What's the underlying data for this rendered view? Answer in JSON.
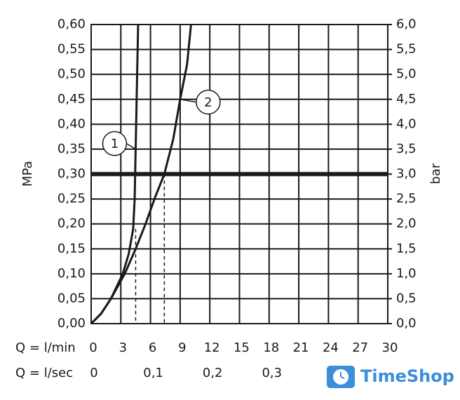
{
  "chart_data": {
    "type": "line",
    "x_label": "Q = l/min",
    "x2_label": "Q = l/sec",
    "y_label": "MPa",
    "y2_label": "bar",
    "xlim": [
      0,
      30
    ],
    "xticks": [
      0,
      3,
      6,
      9,
      12,
      15,
      18,
      21,
      24,
      27,
      30
    ],
    "x2lim": [
      0,
      0.5
    ],
    "x2ticks": [
      0,
      {
        "value": 0.1,
        "label": "0,1"
      },
      {
        "value": 0.2,
        "label": "0,2"
      },
      {
        "value": 0.3,
        "label": "0,3"
      }
    ],
    "ylim": [
      0,
      0.6
    ],
    "yticks": [
      {
        "value": 0,
        "label": "0,00"
      },
      {
        "value": 0.05,
        "label": "0,05"
      },
      {
        "value": 0.1,
        "label": "0,10"
      },
      {
        "value": 0.15,
        "label": "0,15"
      },
      {
        "value": 0.2,
        "label": "0,20"
      },
      {
        "value": 0.25,
        "label": "0,25"
      },
      {
        "value": 0.3,
        "label": "0,30"
      },
      {
        "value": 0.35,
        "label": "0,35"
      },
      {
        "value": 0.4,
        "label": "0,40"
      },
      {
        "value": 0.45,
        "label": "0,45"
      },
      {
        "value": 0.5,
        "label": "0,50"
      },
      {
        "value": 0.55,
        "label": "0,55"
      },
      {
        "value": 0.6,
        "label": "0,60"
      }
    ],
    "y2lim": [
      0,
      6
    ],
    "y2ticks": [
      {
        "value": 0,
        "label": "0,0"
      },
      {
        "value": 0.5,
        "label": "0,5"
      },
      {
        "value": 1,
        "label": "1,0"
      },
      {
        "value": 1.5,
        "label": "1,5"
      },
      {
        "value": 2,
        "label": "2,0"
      },
      {
        "value": 2.5,
        "label": "2,5"
      },
      {
        "value": 3,
        "label": "3,0"
      },
      {
        "value": 3.5,
        "label": "3,5"
      },
      {
        "value": 4,
        "label": "4,0"
      },
      {
        "value": 4.5,
        "label": "4,5"
      },
      {
        "value": 5,
        "label": "5,0"
      },
      {
        "value": 5.5,
        "label": "5,5"
      },
      {
        "value": 6,
        "label": "6,0"
      }
    ],
    "grid": true,
    "reference_line": 0.3,
    "dashed_markers": [
      {
        "x": 4.5,
        "y": 0.19
      },
      {
        "x": 7.4,
        "y": 0.3
      }
    ],
    "series": [
      {
        "name": "1",
        "color": "#1a1a1a",
        "x": [
          0,
          1,
          2,
          3.2,
          3.8,
          4.25,
          4.4,
          4.5,
          4.6,
          4.75
        ],
        "values": [
          0,
          0.02,
          0.05,
          0.1,
          0.14,
          0.19,
          0.25,
          0.35,
          0.45,
          0.6
        ]
      },
      {
        "name": "2",
        "color": "#1a1a1a",
        "x": [
          0,
          1,
          2,
          3.4,
          4.5,
          5.5,
          6.4,
          7.4,
          8.3,
          9,
          9.7,
          10.1
        ],
        "values": [
          0,
          0.02,
          0.05,
          0.1,
          0.15,
          0.2,
          0.25,
          0.3,
          0.37,
          0.45,
          0.52,
          0.6
        ]
      }
    ],
    "watermark": "TimeShop"
  }
}
